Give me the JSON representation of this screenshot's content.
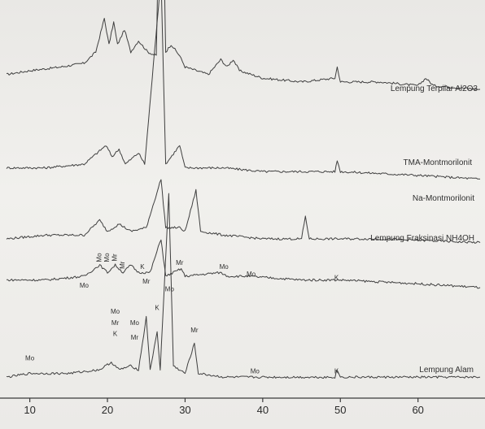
{
  "chart_data": {
    "type": "line",
    "title": "",
    "xlabel": "",
    "ylabel": "",
    "xlim": [
      7,
      68
    ],
    "x_ticks": [
      10,
      20,
      30,
      40,
      50,
      60
    ],
    "grid": false,
    "legend": "none",
    "colors": {
      "trace": "#3f3f3f",
      "background": "#ecebe8"
    },
    "series": [
      {
        "name": "Lempung Terpilar Al2O3",
        "baseline": 0.83,
        "points": [
          [
            7,
            0.84
          ],
          [
            10,
            0.85
          ],
          [
            14,
            0.86
          ],
          [
            17,
            0.87
          ],
          [
            18.5,
            0.9
          ],
          [
            19.6,
            0.99
          ],
          [
            20.2,
            0.92
          ],
          [
            20.8,
            0.98
          ],
          [
            21.3,
            0.92
          ],
          [
            22.2,
            0.96
          ],
          [
            23,
            0.9
          ],
          [
            24,
            0.93
          ],
          [
            25.2,
            0.9
          ],
          [
            26.3,
            0.89
          ],
          [
            26.9,
            1.6
          ],
          [
            27.5,
            0.9
          ],
          [
            28.2,
            0.92
          ],
          [
            29.3,
            0.89
          ],
          [
            30,
            0.86
          ],
          [
            33,
            0.84
          ],
          [
            34.6,
            0.88
          ],
          [
            35.4,
            0.86
          ],
          [
            36.2,
            0.88
          ],
          [
            37,
            0.85
          ],
          [
            40,
            0.83
          ],
          [
            45,
            0.82
          ],
          [
            49.3,
            0.83
          ],
          [
            49.6,
            0.86
          ],
          [
            50,
            0.82
          ],
          [
            55,
            0.82
          ],
          [
            60,
            0.81
          ],
          [
            61,
            0.83
          ],
          [
            62,
            0.81
          ],
          [
            68,
            0.8
          ]
        ]
      },
      {
        "name": "TMA-Montmorilonit",
        "baseline": 0.58,
        "points": [
          [
            7,
            0.59
          ],
          [
            12,
            0.59
          ],
          [
            17,
            0.6
          ],
          [
            19.8,
            0.65
          ],
          [
            20.6,
            0.62
          ],
          [
            21.5,
            0.64
          ],
          [
            22.3,
            0.6
          ],
          [
            24,
            0.63
          ],
          [
            24.8,
            0.6
          ],
          [
            26.9,
            1.1
          ],
          [
            27.5,
            0.6
          ],
          [
            29.3,
            0.65
          ],
          [
            30,
            0.59
          ],
          [
            35,
            0.59
          ],
          [
            40,
            0.58
          ],
          [
            49.3,
            0.58
          ],
          [
            49.6,
            0.61
          ],
          [
            50,
            0.58
          ],
          [
            60,
            0.57
          ],
          [
            68,
            0.56
          ]
        ]
      },
      {
        "name": "Na-Montmorilonit",
        "baseline": 0.4,
        "points": [
          [
            7,
            0.4
          ],
          [
            12,
            0.41
          ],
          [
            17,
            0.41
          ],
          [
            19,
            0.45
          ],
          [
            20,
            0.42
          ],
          [
            21.5,
            0.44
          ],
          [
            23,
            0.42
          ],
          [
            25,
            0.43
          ],
          [
            26.9,
            0.56
          ],
          [
            27.5,
            0.43
          ],
          [
            29.3,
            0.43
          ],
          [
            30,
            0.42
          ],
          [
            31.4,
            0.53
          ],
          [
            32,
            0.42
          ],
          [
            35,
            0.41
          ],
          [
            40,
            0.4
          ],
          [
            45,
            0.4
          ],
          [
            45.5,
            0.46
          ],
          [
            46,
            0.4
          ],
          [
            55,
            0.4
          ],
          [
            68,
            0.39
          ]
        ]
      },
      {
        "name": "Lempung Fraksinasi NH4OH",
        "baseline": 0.28,
        "points": [
          [
            7,
            0.29
          ],
          [
            12,
            0.29
          ],
          [
            17,
            0.3
          ],
          [
            19,
            0.33
          ],
          [
            20,
            0.31
          ],
          [
            21,
            0.33
          ],
          [
            22,
            0.31
          ],
          [
            23,
            0.33
          ],
          [
            24,
            0.31
          ],
          [
            25.5,
            0.31
          ],
          [
            26.9,
            0.4
          ],
          [
            27.5,
            0.3
          ],
          [
            29.5,
            0.32
          ],
          [
            30,
            0.3
          ],
          [
            34.5,
            0.31
          ],
          [
            35.5,
            0.3
          ],
          [
            38,
            0.3
          ],
          [
            45,
            0.29
          ],
          [
            50,
            0.29
          ],
          [
            60,
            0.28
          ],
          [
            68,
            0.27
          ]
        ]
      },
      {
        "name": "Lempung Alam",
        "baseline": 0.03,
        "points": [
          [
            7,
            0.03
          ],
          [
            10,
            0.04
          ],
          [
            11,
            0.04
          ],
          [
            15,
            0.04
          ],
          [
            19,
            0.05
          ],
          [
            20.5,
            0.07
          ],
          [
            21.5,
            0.05
          ],
          [
            23,
            0.06
          ],
          [
            24,
            0.05
          ],
          [
            25,
            0.19
          ],
          [
            25.5,
            0.05
          ],
          [
            26.4,
            0.15
          ],
          [
            26.8,
            0.05
          ],
          [
            27.9,
            0.52
          ],
          [
            28.5,
            0.06
          ],
          [
            30,
            0.04
          ],
          [
            31.2,
            0.12
          ],
          [
            31.7,
            0.04
          ],
          [
            35,
            0.03
          ],
          [
            40,
            0.03
          ],
          [
            45,
            0.03
          ],
          [
            49.3,
            0.03
          ],
          [
            49.6,
            0.05
          ],
          [
            50,
            0.03
          ],
          [
            55,
            0.03
          ],
          [
            60,
            0.03
          ],
          [
            68,
            0.03
          ]
        ]
      }
    ],
    "peak_labels": [
      {
        "text": "Mo",
        "x": 10,
        "y": 0.075
      },
      {
        "text": "Mo",
        "x": 21,
        "y": 0.2
      },
      {
        "text": "Mr",
        "x": 21,
        "y": 0.17
      },
      {
        "text": "K",
        "x": 21,
        "y": 0.14
      },
      {
        "text": "Mo",
        "x": 23.5,
        "y": 0.17
      },
      {
        "text": "Mr",
        "x": 23.5,
        "y": 0.13
      },
      {
        "text": "Mr",
        "x": 25,
        "y": 0.28
      },
      {
        "text": "K",
        "x": 26.4,
        "y": 0.21
      },
      {
        "text": "Mr",
        "x": 31.2,
        "y": 0.15
      },
      {
        "text": "Mo",
        "x": 39,
        "y": 0.04
      },
      {
        "text": "K",
        "x": 49.5,
        "y": 0.04
      },
      {
        "text": "Mo",
        "x": 17,
        "y": 0.27
      },
      {
        "text": "Mo",
        "x": 19.2,
        "y": 0.35,
        "rot": -90
      },
      {
        "text": "Mo",
        "x": 20.2,
        "y": 0.35,
        "rot": -90
      },
      {
        "text": "Mr",
        "x": 21.2,
        "y": 0.35,
        "rot": -90
      },
      {
        "text": "Mr",
        "x": 22.2,
        "y": 0.33,
        "rot": -90
      },
      {
        "text": "K",
        "x": 24.5,
        "y": 0.32
      },
      {
        "text": "Mr",
        "x": 29.3,
        "y": 0.33
      },
      {
        "text": "Mo",
        "x": 28,
        "y": 0.26
      },
      {
        "text": "Mo",
        "x": 35,
        "y": 0.32
      },
      {
        "text": "Mo",
        "x": 38.5,
        "y": 0.3
      },
      {
        "text": "K",
        "x": 49.5,
        "y": 0.29
      }
    ]
  }
}
